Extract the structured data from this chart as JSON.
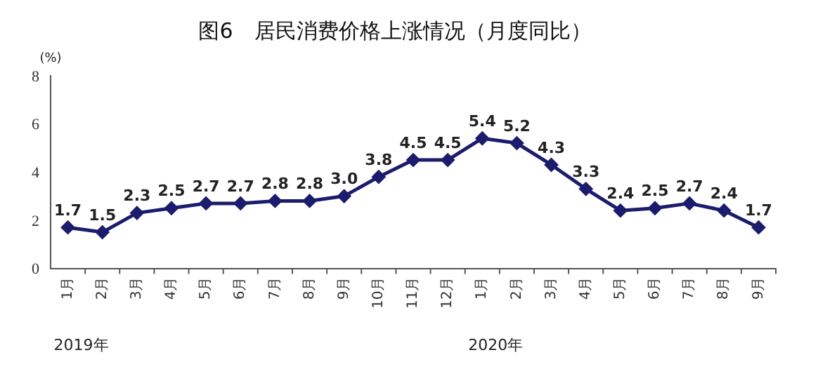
{
  "chart_data": {
    "type": "line",
    "title": "图6　居民消费价格上涨情况（月度同比）",
    "ylabel": "(%)",
    "categories": [
      "1月",
      "2月",
      "3月",
      "4月",
      "5月",
      "6月",
      "7月",
      "8月",
      "9月",
      "10月",
      "11月",
      "12月",
      "1月",
      "2月",
      "3月",
      "4月",
      "5月",
      "6月",
      "7月",
      "8月",
      "9月"
    ],
    "series": [
      {
        "color": "#1c1c6e",
        "values": [
          1.7,
          1.5,
          2.3,
          2.5,
          2.7,
          2.7,
          2.8,
          2.8,
          3.0,
          3.8,
          4.5,
          4.5,
          5.4,
          5.2,
          4.3,
          3.3,
          2.4,
          2.5,
          2.7,
          2.4,
          1.7
        ],
        "value_labels": [
          "1.7",
          "1.5",
          "2.3",
          "2.5",
          "2.7",
          "2.7",
          "2.8",
          "2.8",
          "3.0",
          "3.8",
          "4.5",
          "4.5",
          "5.4",
          "5.2",
          "4.3",
          "3.3",
          "2.4",
          "2.5",
          "2.7",
          "2.4",
          "1.7"
        ]
      }
    ],
    "ylim": [
      0,
      8
    ],
    "yticks": [
      0,
      2,
      4,
      6,
      8
    ],
    "grid": false,
    "legend": false,
    "marker": "diamond",
    "line_style": "solid",
    "annotations": [
      "2019年",
      "2020年"
    ]
  }
}
